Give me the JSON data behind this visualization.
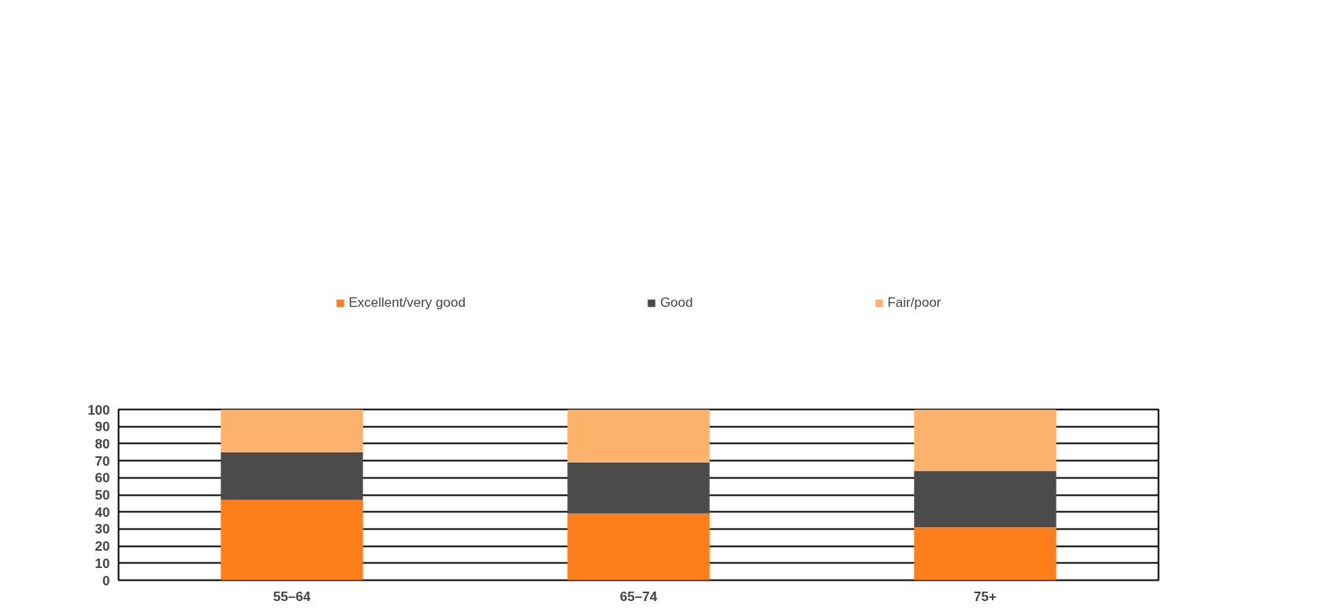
{
  "chart_data": {
    "type": "bar",
    "stacked": true,
    "categories": [
      "55–64",
      "65–74",
      "75+"
    ],
    "series": [
      {
        "name": "Excellent/very good",
        "color": "#fd7f1b",
        "values": [
          47,
          39,
          31
        ]
      },
      {
        "name": "Good",
        "color": "#4b4b4b",
        "values": [
          28,
          30,
          33
        ]
      },
      {
        "name": "Fair/poor",
        "color": "#fdb26b",
        "values": [
          25,
          31,
          36
        ]
      }
    ],
    "ylim": [
      0,
      100
    ],
    "yticks": [
      0,
      10,
      20,
      30,
      40,
      50,
      60,
      70,
      80,
      90,
      100
    ],
    "grid": "y",
    "legend": "top"
  }
}
